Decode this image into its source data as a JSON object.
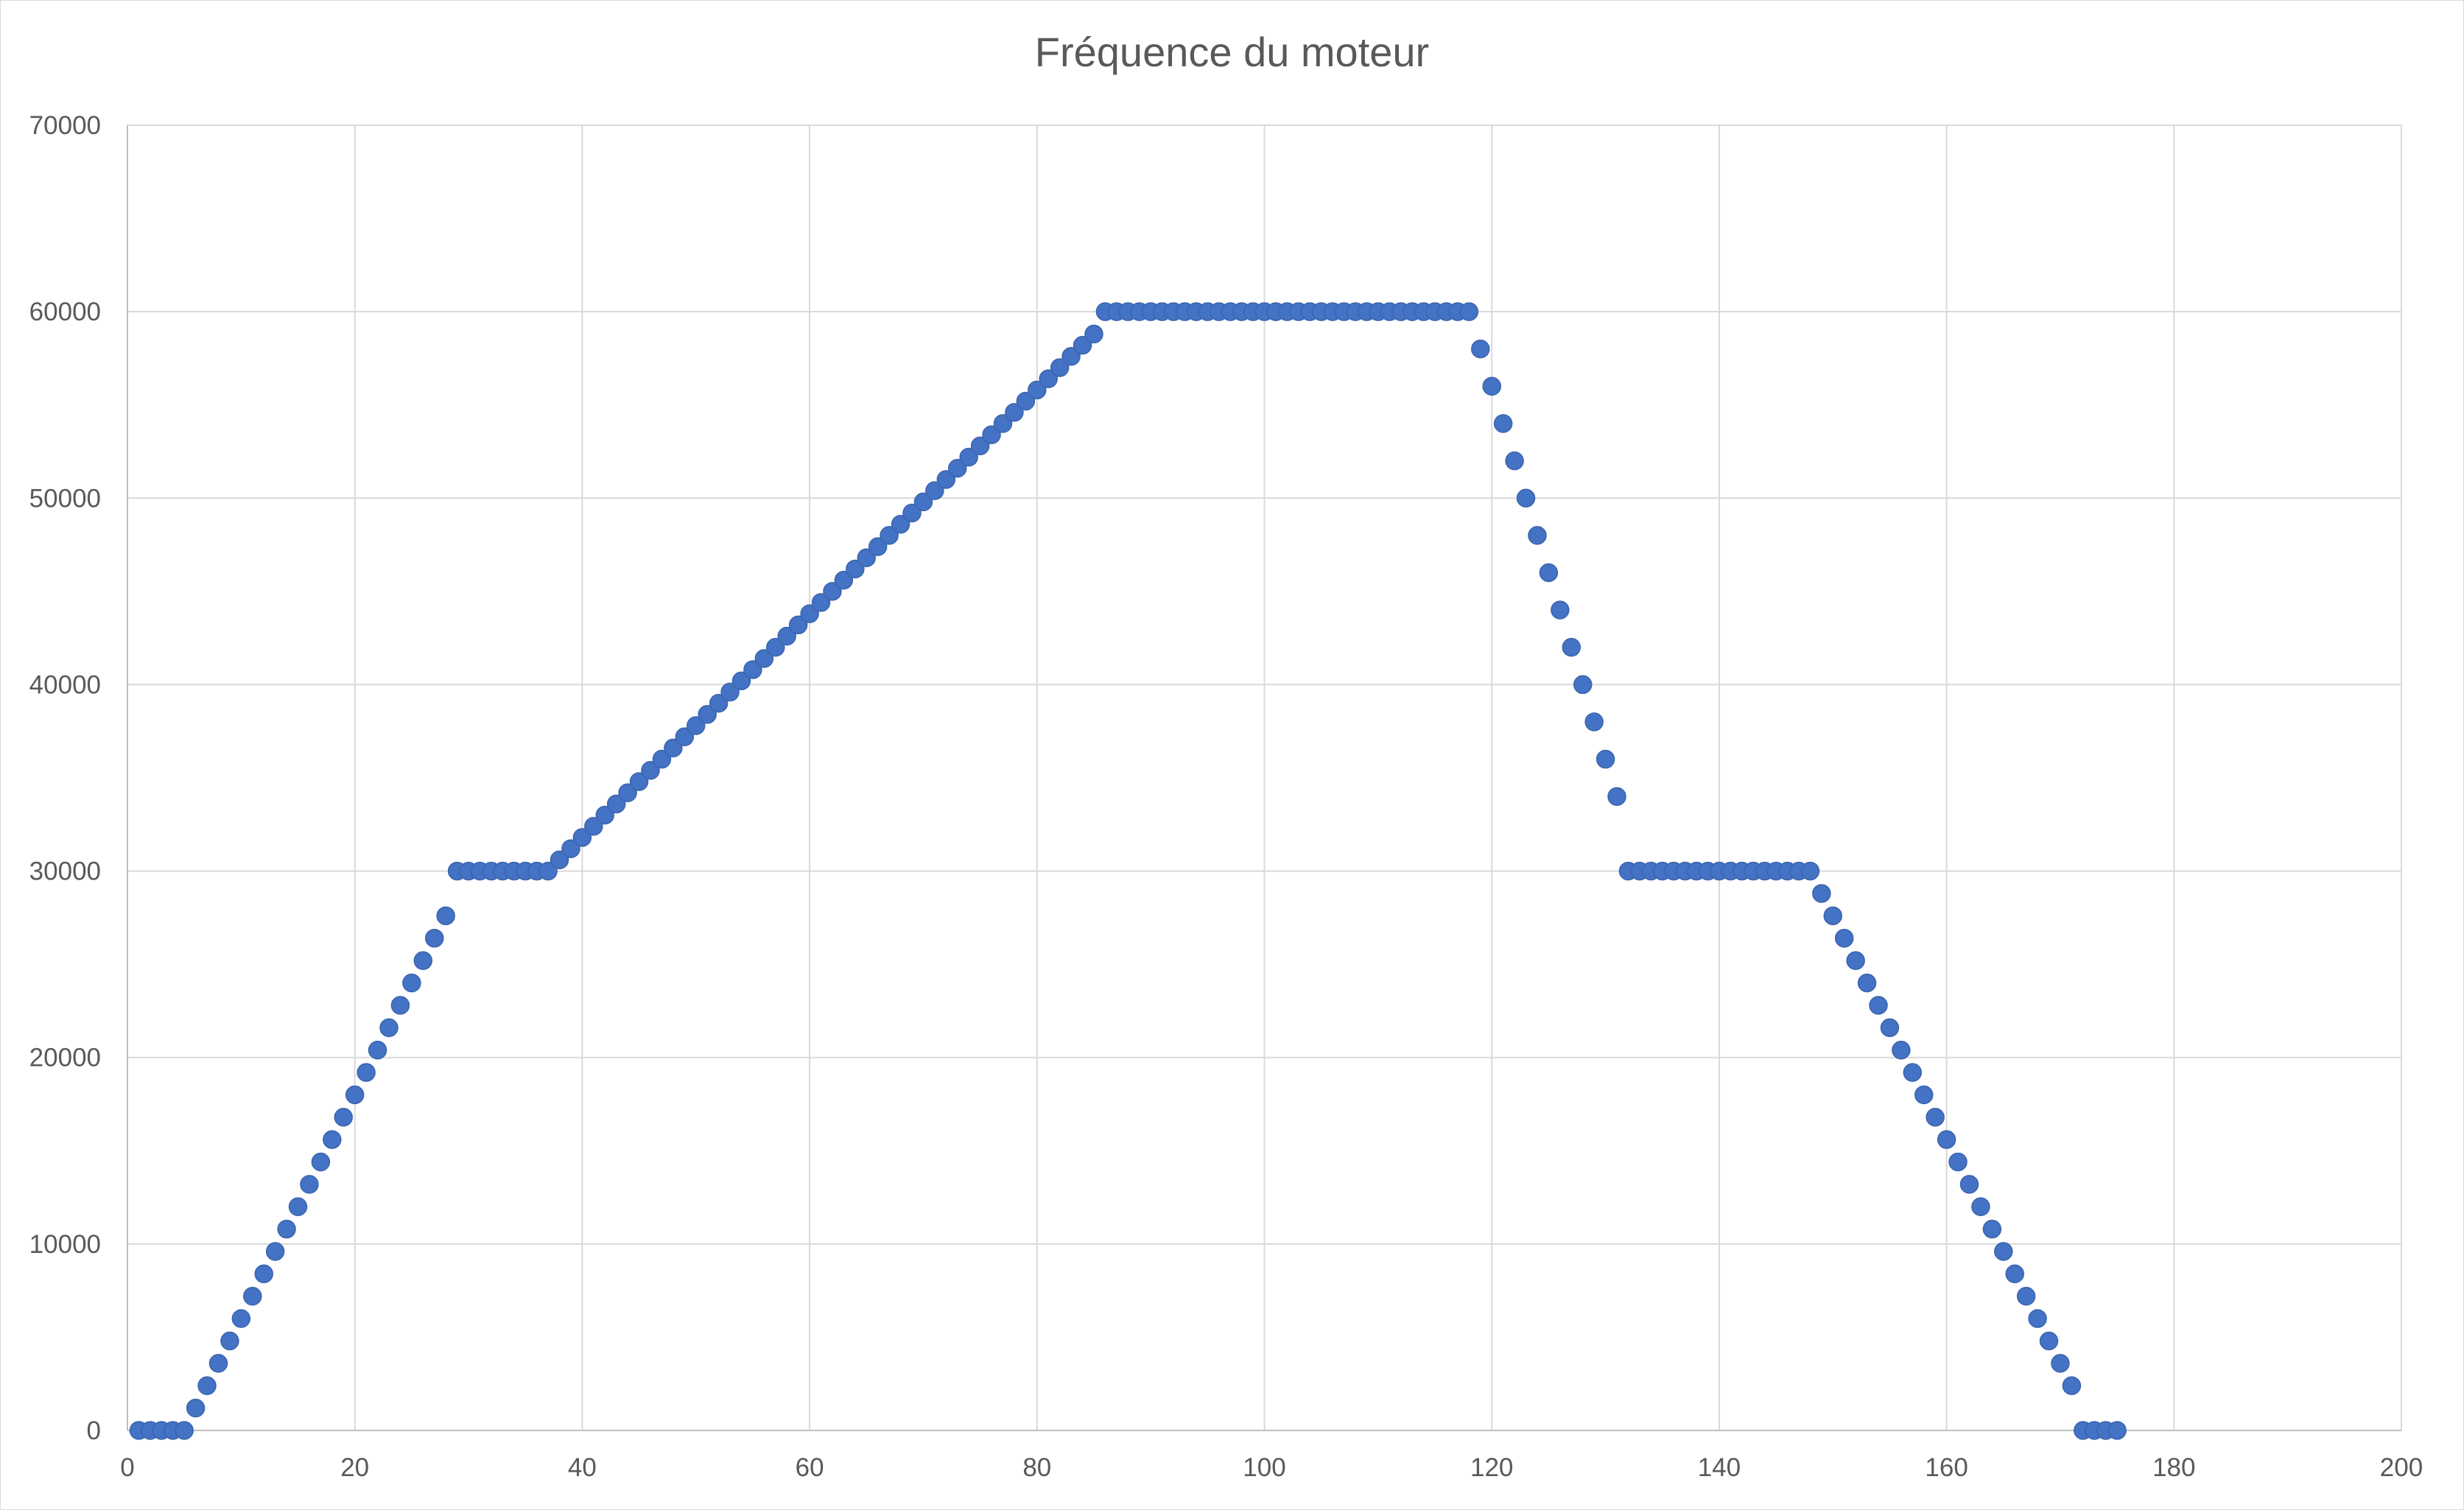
{
  "chart_data": {
    "type": "scatter",
    "title": "Fréquence du moteur",
    "xlabel": "",
    "ylabel": "",
    "xlim": [
      0,
      200
    ],
    "ylim": [
      0,
      70000
    ],
    "x_ticks": [
      0,
      20,
      40,
      60,
      80,
      100,
      120,
      140,
      160,
      180,
      200
    ],
    "y_ticks": [
      0,
      10000,
      20000,
      30000,
      40000,
      50000,
      60000,
      70000
    ],
    "grid": true,
    "legend": "none",
    "marker_color": "#4472C4",
    "series": [
      {
        "x": [
          1,
          2,
          3,
          4,
          5,
          6,
          7,
          8,
          9,
          10,
          11,
          12,
          13,
          14,
          15,
          16,
          17,
          18,
          19,
          20,
          21,
          22,
          23,
          24,
          25,
          26,
          27,
          28,
          29,
          30,
          31,
          32,
          33,
          34,
          35,
          36,
          37,
          38,
          39,
          40,
          41,
          42,
          43,
          44,
          45,
          46,
          47,
          48,
          49,
          50,
          51,
          52,
          53,
          54,
          55,
          56,
          57,
          58,
          59,
          60,
          61,
          62,
          63,
          64,
          65,
          66,
          67,
          68,
          69,
          70,
          71,
          72,
          73,
          74,
          75,
          76,
          77,
          78,
          79,
          80,
          81,
          82,
          83,
          84,
          85,
          86,
          87,
          88,
          89,
          90,
          91,
          92,
          93,
          94,
          95,
          96,
          97,
          98,
          99,
          100,
          101,
          102,
          103,
          104,
          105,
          106,
          107,
          108,
          109,
          110,
          111,
          112,
          113,
          114,
          115,
          116,
          117,
          118,
          119,
          120,
          121,
          122,
          123,
          124,
          125,
          126,
          127,
          128,
          129,
          130,
          131,
          132,
          133,
          134,
          135,
          136,
          137,
          138,
          139,
          140,
          141,
          142,
          143,
          144,
          145,
          146,
          147,
          148,
          149,
          150,
          151,
          152,
          153,
          154,
          155,
          156,
          157,
          158,
          159,
          160,
          161,
          162,
          163,
          164,
          165,
          166,
          167,
          168,
          169,
          170,
          171,
          172,
          173,
          174,
          175
        ],
        "y": [
          0,
          0,
          0,
          0,
          0,
          1200,
          2400,
          3600,
          4800,
          6000,
          7200,
          8400,
          9600,
          10800,
          12000,
          13200,
          14400,
          15600,
          16800,
          18000,
          19200,
          20400,
          21600,
          22800,
          24000,
          25200,
          26400,
          27600,
          30000,
          30000,
          30000,
          30000,
          30000,
          30000,
          30000,
          30000,
          30000,
          30600,
          31200,
          31800,
          32400,
          33000,
          33600,
          34200,
          34800,
          35400,
          36000,
          36600,
          37200,
          37800,
          38400,
          39000,
          39600,
          40200,
          40800,
          41400,
          42000,
          42600,
          43200,
          43800,
          44400,
          45000,
          45600,
          46200,
          46800,
          47400,
          48000,
          48600,
          49200,
          49800,
          50400,
          51000,
          51600,
          52200,
          52800,
          53400,
          54000,
          54600,
          55200,
          55800,
          56400,
          57000,
          57600,
          58200,
          58800,
          60000,
          60000,
          60000,
          60000,
          60000,
          60000,
          60000,
          60000,
          60000,
          60000,
          60000,
          60000,
          60000,
          60000,
          60000,
          60000,
          60000,
          60000,
          60000,
          60000,
          60000,
          60000,
          60000,
          60000,
          60000,
          60000,
          60000,
          60000,
          60000,
          60000,
          60000,
          60000,
          60000,
          58000,
          56000,
          54000,
          52000,
          50000,
          48000,
          46000,
          44000,
          42000,
          40000,
          38000,
          36000,
          34000,
          30000,
          30000,
          30000,
          30000,
          30000,
          30000,
          30000,
          30000,
          30000,
          30000,
          30000,
          30000,
          30000,
          30000,
          30000,
          30000,
          30000,
          28800,
          27600,
          26400,
          25200,
          24000,
          22800,
          21600,
          20400,
          19200,
          18000,
          16800,
          15600,
          14400,
          13200,
          12000,
          10800,
          9600,
          8400,
          7200,
          6000,
          4800,
          3600,
          2400,
          0,
          0,
          0,
          0
        ]
      }
    ]
  }
}
